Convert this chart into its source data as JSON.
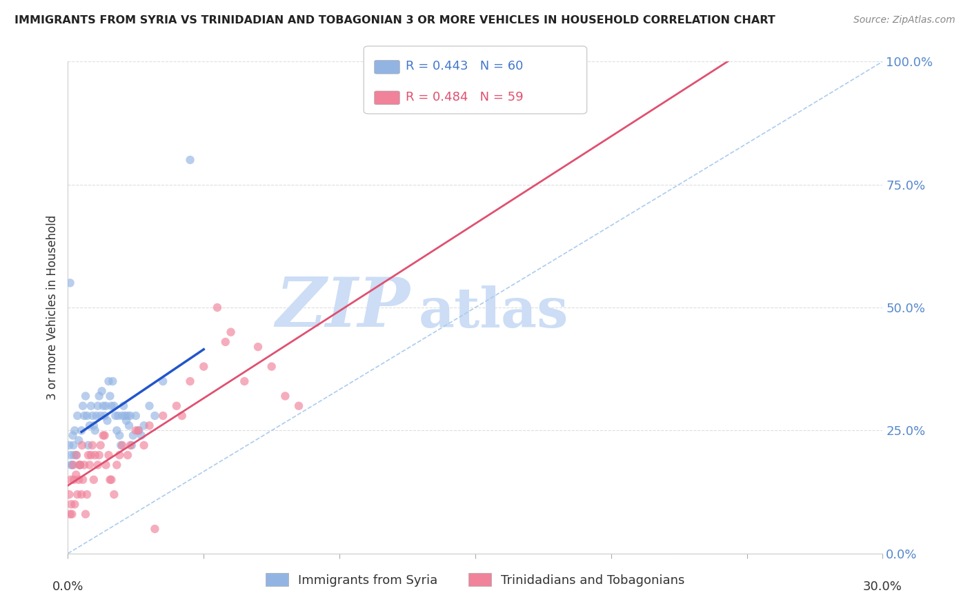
{
  "title": "IMMIGRANTS FROM SYRIA VS TRINIDADIAN AND TOBAGONIAN 3 OR MORE VEHICLES IN HOUSEHOLD CORRELATION CHART",
  "source": "Source: ZipAtlas.com",
  "ylabel": "3 or more Vehicles in Household",
  "ytick_values": [
    0.0,
    25.0,
    50.0,
    75.0,
    100.0
  ],
  "xlim": [
    0.0,
    30.0
  ],
  "ylim": [
    0.0,
    100.0
  ],
  "syria_R": 0.443,
  "syria_N": 60,
  "tt_R": 0.484,
  "tt_N": 59,
  "syria_color": "#92b4e3",
  "tt_color": "#f0829a",
  "syria_line_color": "#2255cc",
  "tt_line_color": "#e05070",
  "diagonal_color": "#aaccee",
  "background_color": "#ffffff",
  "watermark_zip": "ZIP",
  "watermark_atlas": "atlas",
  "watermark_color": "#ccddf5",
  "legend_label_syria": "Immigrants from Syria",
  "legend_label_tt": "Trinidadians and Tobagonians",
  "syria_scatter_x": [
    0.1,
    0.15,
    0.2,
    0.25,
    0.3,
    0.35,
    0.4,
    0.45,
    0.5,
    0.55,
    0.6,
    0.65,
    0.7,
    0.75,
    0.8,
    0.85,
    0.9,
    0.95,
    1.0,
    1.05,
    1.1,
    1.15,
    1.2,
    1.25,
    1.3,
    1.35,
    1.4,
    1.45,
    1.5,
    1.55,
    1.6,
    1.65,
    1.7,
    1.75,
    1.8,
    1.85,
    1.9,
    1.95,
    2.0,
    2.05,
    2.1,
    2.15,
    2.2,
    2.25,
    2.3,
    2.35,
    2.4,
    2.5,
    2.6,
    2.7,
    2.8,
    3.0,
    3.2,
    3.5,
    0.05,
    0.12,
    0.18,
    4.5,
    0.22,
    0.08
  ],
  "syria_scatter_y": [
    20,
    18,
    22,
    25,
    20,
    28,
    23,
    18,
    25,
    30,
    28,
    32,
    28,
    22,
    26,
    30,
    28,
    26,
    25,
    28,
    30,
    32,
    28,
    33,
    30,
    28,
    30,
    27,
    35,
    32,
    30,
    35,
    30,
    28,
    25,
    28,
    24,
    22,
    28,
    30,
    28,
    27,
    28,
    26,
    28,
    22,
    24,
    28,
    25,
    24,
    26,
    30,
    28,
    35,
    22,
    18,
    24,
    80,
    20,
    55
  ],
  "tt_scatter_x": [
    0.05,
    0.1,
    0.15,
    0.2,
    0.25,
    0.3,
    0.35,
    0.4,
    0.45,
    0.5,
    0.55,
    0.6,
    0.65,
    0.7,
    0.75,
    0.8,
    0.85,
    0.9,
    0.95,
    1.0,
    1.1,
    1.2,
    1.3,
    1.4,
    1.5,
    1.6,
    1.7,
    1.8,
    1.9,
    2.0,
    2.2,
    2.5,
    2.8,
    3.0,
    3.5,
    4.0,
    4.5,
    5.0,
    5.5,
    6.0,
    6.5,
    7.0,
    7.5,
    8.0,
    8.5,
    0.12,
    0.22,
    0.32,
    0.42,
    0.52,
    1.15,
    1.35,
    1.55,
    2.3,
    2.6,
    4.2,
    0.08,
    3.2,
    5.8
  ],
  "tt_scatter_y": [
    12,
    15,
    8,
    18,
    10,
    16,
    12,
    15,
    18,
    12,
    15,
    18,
    8,
    12,
    20,
    18,
    20,
    22,
    15,
    20,
    18,
    22,
    24,
    18,
    20,
    15,
    12,
    18,
    20,
    22,
    20,
    25,
    22,
    26,
    28,
    30,
    35,
    38,
    50,
    45,
    35,
    42,
    38,
    32,
    30,
    10,
    15,
    20,
    18,
    22,
    20,
    24,
    15,
    22,
    25,
    28,
    8,
    5,
    43
  ],
  "syria_line_x_start": 0.5,
  "syria_line_x_end": 5.0,
  "tt_line_x_start": 0.0,
  "tt_line_x_end": 30.0
}
